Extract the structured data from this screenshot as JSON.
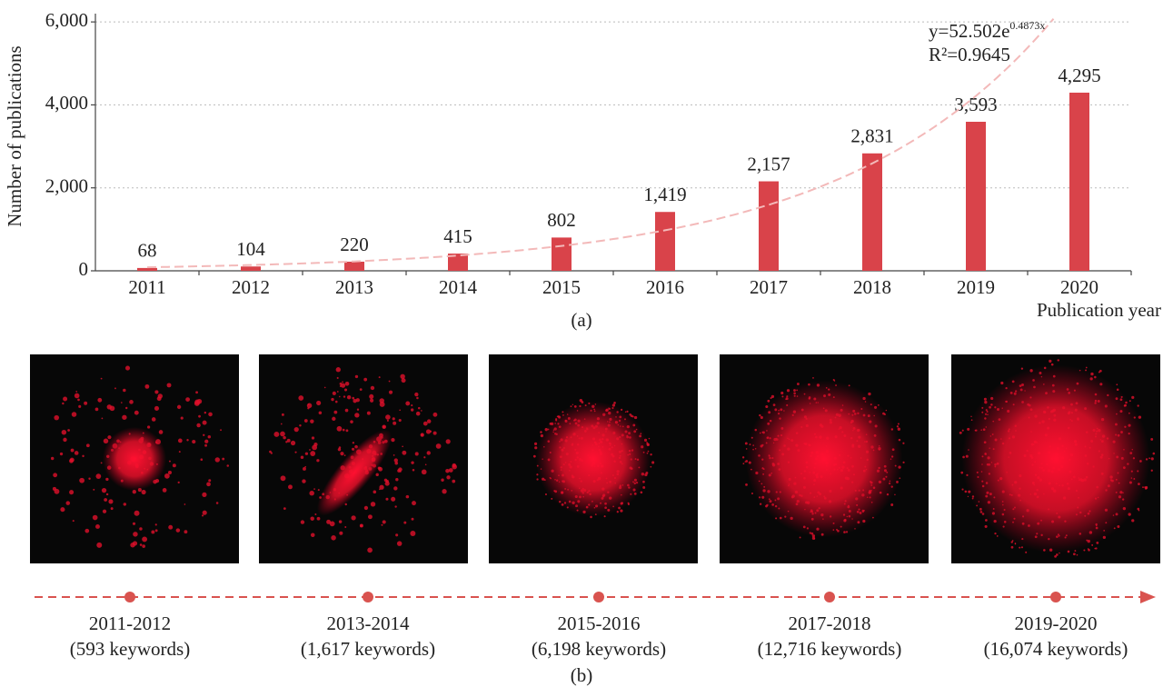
{
  "chart_data": {
    "type": "bar",
    "categories": [
      "2011",
      "2012",
      "2013",
      "2014",
      "2015",
      "2016",
      "2017",
      "2018",
      "2019",
      "2020"
    ],
    "values": [
      68,
      104,
      220,
      415,
      802,
      1419,
      2157,
      2831,
      3593,
      4295
    ],
    "value_labels": [
      "68",
      "104",
      "220",
      "415",
      "802",
      "1,419",
      "2,157",
      "2,831",
      "3,593",
      "4,295"
    ],
    "color": "#d9434a",
    "ylim": [
      0,
      6200
    ],
    "yticks": [
      0,
      {
        "value": 2000,
        "label": "2,000"
      },
      {
        "value": 4000,
        "label": "4,000"
      },
      {
        "value": 6000,
        "label": "6,000"
      }
    ],
    "grid": true,
    "xlabel": "Publication year",
    "ylabel": "Number of publications",
    "caption": "(a)",
    "trendline": {
      "equation": "y=52.502e",
      "exponent": "0.4873x",
      "r_squared": "R²=0.9645",
      "color": "#f3b9b9"
    }
  },
  "timeline": {
    "caption": "(b)",
    "color": "#d9534f",
    "periods": [
      {
        "label": "2011-2012",
        "keywords": "(593 keywords)"
      },
      {
        "label": "2013-2014",
        "keywords": "(1,617 keywords)"
      },
      {
        "label": "2015-2016",
        "keywords": "(6,198 keywords)"
      },
      {
        "label": "2017-2018",
        "keywords": "(12,716 keywords)"
      },
      {
        "label": "2019-2020",
        "keywords": "(16,074 keywords)"
      }
    ]
  }
}
